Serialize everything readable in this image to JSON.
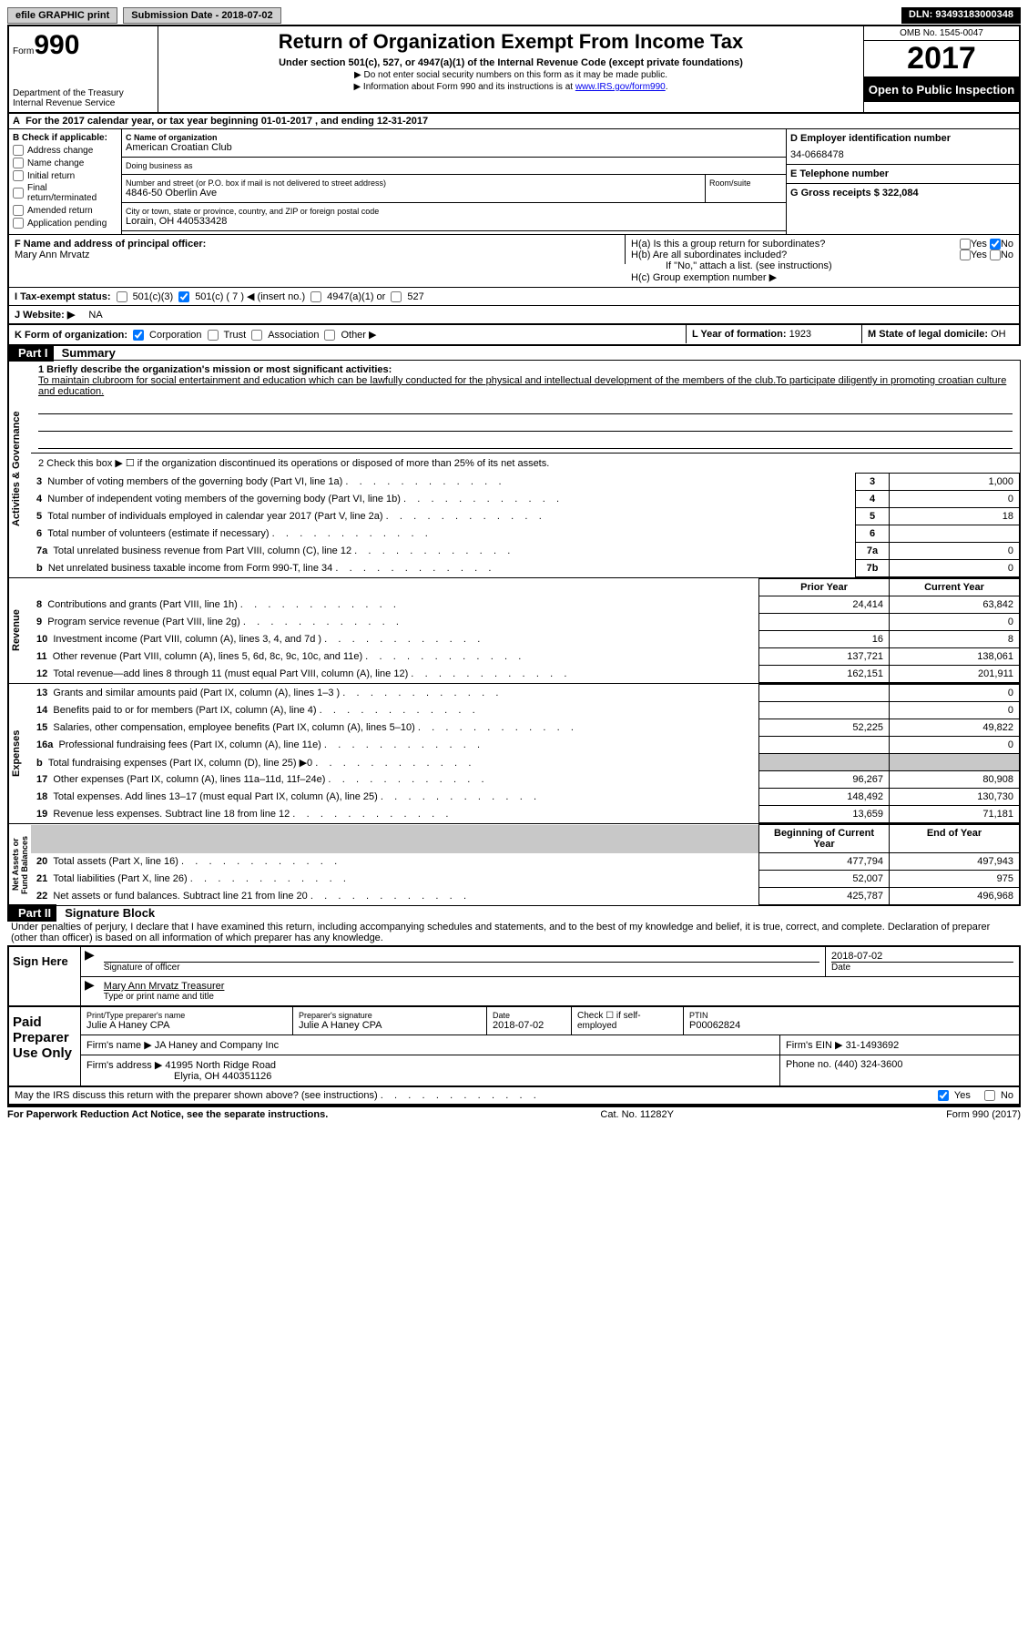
{
  "top": {
    "efile": "efile GRAPHIC print",
    "submission": "Submission Date - 2018-07-02",
    "dln": "DLN: 93493183000348"
  },
  "header": {
    "form_word": "Form",
    "form_num": "990",
    "dept1": "Department of the Treasury",
    "dept2": "Internal Revenue Service",
    "title": "Return of Organization Exempt From Income Tax",
    "subtitle": "Under section 501(c), 527, or 4947(a)(1) of the Internal Revenue Code (except private foundations)",
    "note1": "▶ Do not enter social security numbers on this form as it may be made public.",
    "note2_pre": "▶ Information about Form 990 and its instructions is at ",
    "note2_link": "www.IRS.gov/form990",
    "omb": "OMB No. 1545-0047",
    "year": "2017",
    "open": "Open to Public Inspection"
  },
  "a_line": {
    "prefix": "For the 2017 calendar year, or tax year beginning ",
    "begin": "01-01-2017",
    "mid": "  , and ending ",
    "end": "12-31-2017"
  },
  "b": {
    "heading": "B Check if applicable:",
    "items": [
      "Address change",
      "Name change",
      "Initial return",
      "Final return/terminated",
      "Amended return",
      "Application pending"
    ]
  },
  "c": {
    "name_label": "C Name of organization",
    "name": "American Croatian Club",
    "dba_label": "Doing business as",
    "dba": "",
    "street_label": "Number and street (or P.O. box if mail is not delivered to street address)",
    "room_label": "Room/suite",
    "street": "4846-50 Oberlin Ave",
    "city_label": "City or town, state or province, country, and ZIP or foreign postal code",
    "city": "Lorain, OH  440533428"
  },
  "d": {
    "label": "D Employer identification number",
    "value": "34-0668478"
  },
  "e": {
    "label": "E Telephone number",
    "value": ""
  },
  "g": {
    "label": "G Gross receipts $",
    "value": "322,084"
  },
  "f": {
    "label": "F  Name and address of principal officer:",
    "name": "Mary Ann Mrvatz"
  },
  "h": {
    "a": "H(a)  Is this a group return for subordinates?",
    "b": "H(b)  Are all subordinates included?",
    "b_note": "If \"No,\" attach a list. (see instructions)",
    "c": "H(c)  Group exemption number ▶",
    "yes": "Yes",
    "no": "No"
  },
  "i": {
    "label": "I  Tax-exempt status:",
    "opts": [
      "501(c)(3)",
      "501(c) ( 7 ) ◀ (insert no.)",
      "4947(a)(1) or",
      "527"
    ]
  },
  "j": {
    "label": "J  Website: ▶",
    "value": "NA"
  },
  "k": {
    "label": "K Form of organization:",
    "opts": [
      "Corporation",
      "Trust",
      "Association",
      "Other ▶"
    ]
  },
  "l": {
    "label": "L Year of formation:",
    "value": "1923"
  },
  "m": {
    "label": "M State of legal domicile:",
    "value": "OH"
  },
  "part1": {
    "header": "Part I",
    "title": "Summary",
    "mission_label": "1   Briefly describe the organization's mission or most significant activities:",
    "mission": "To maintain clubroom for social entertainment and education which can be lawfully conducted for the physical and intellectual development of the members of the club.To participate diligently in promoting croatian culture and education.",
    "line2": "2   Check this box ▶ ☐  if the organization discontinued its operations or disposed of more than 25% of its net assets.",
    "governance_rows": [
      {
        "n": "3",
        "t": "Number of voting members of the governing body (Part VI, line 1a)",
        "box": "3",
        "v": "1,000"
      },
      {
        "n": "4",
        "t": "Number of independent voting members of the governing body (Part VI, line 1b)",
        "box": "4",
        "v": "0"
      },
      {
        "n": "5",
        "t": "Total number of individuals employed in calendar year 2017 (Part V, line 2a)",
        "box": "5",
        "v": "18"
      },
      {
        "n": "6",
        "t": "Total number of volunteers (estimate if necessary)",
        "box": "6",
        "v": ""
      },
      {
        "n": "7a",
        "t": "Total unrelated business revenue from Part VIII, column (C), line 12",
        "box": "7a",
        "v": "0"
      },
      {
        "n": "b",
        "t": "Net unrelated business taxable income from Form 990-T, line 34",
        "box": "7b",
        "v": "0"
      }
    ],
    "col_headers": {
      "py": "Prior Year",
      "cy": "Current Year"
    },
    "revenue_rows": [
      {
        "n": "8",
        "t": "Contributions and grants (Part VIII, line 1h)",
        "py": "24,414",
        "cy": "63,842"
      },
      {
        "n": "9",
        "t": "Program service revenue (Part VIII, line 2g)",
        "py": "",
        "cy": "0"
      },
      {
        "n": "10",
        "t": "Investment income (Part VIII, column (A), lines 3, 4, and 7d )",
        "py": "16",
        "cy": "8"
      },
      {
        "n": "11",
        "t": "Other revenue (Part VIII, column (A), lines 5, 6d, 8c, 9c, 10c, and 11e)",
        "py": "137,721",
        "cy": "138,061"
      },
      {
        "n": "12",
        "t": "Total revenue—add lines 8 through 11 (must equal Part VIII, column (A), line 12)",
        "py": "162,151",
        "cy": "201,911"
      }
    ],
    "expense_rows": [
      {
        "n": "13",
        "t": "Grants and similar amounts paid (Part IX, column (A), lines 1–3 )",
        "py": "",
        "cy": "0"
      },
      {
        "n": "14",
        "t": "Benefits paid to or for members (Part IX, column (A), line 4)",
        "py": "",
        "cy": "0"
      },
      {
        "n": "15",
        "t": "Salaries, other compensation, employee benefits (Part IX, column (A), lines 5–10)",
        "py": "52,225",
        "cy": "49,822"
      },
      {
        "n": "16a",
        "t": "Professional fundraising fees (Part IX, column (A), line 11e)",
        "py": "",
        "cy": "0"
      },
      {
        "n": "b",
        "t": "Total fundraising expenses (Part IX, column (D), line 25) ▶0",
        "py": "grey",
        "cy": "grey"
      },
      {
        "n": "17",
        "t": "Other expenses (Part IX, column (A), lines 11a–11d, 11f–24e)",
        "py": "96,267",
        "cy": "80,908"
      },
      {
        "n": "18",
        "t": "Total expenses. Add lines 13–17 (must equal Part IX, column (A), line 25)",
        "py": "148,492",
        "cy": "130,730"
      },
      {
        "n": "19",
        "t": "Revenue less expenses. Subtract line 18 from line 12",
        "py": "13,659",
        "cy": "71,181"
      }
    ],
    "net_headers": {
      "by": "Beginning of Current Year",
      "ey": "End of Year"
    },
    "net_rows": [
      {
        "n": "20",
        "t": "Total assets (Part X, line 16)",
        "py": "477,794",
        "cy": "497,943"
      },
      {
        "n": "21",
        "t": "Total liabilities (Part X, line 26)",
        "py": "52,007",
        "cy": "975"
      },
      {
        "n": "22",
        "t": "Net assets or fund balances. Subtract line 21 from line 20",
        "py": "425,787",
        "cy": "496,968"
      }
    ]
  },
  "part2": {
    "header": "Part II",
    "title": "Signature Block",
    "penalty": "Under penalties of perjury, I declare that I have examined this return, including accompanying schedules and statements, and to the best of my knowledge and belief, it is true, correct, and complete. Declaration of preparer (other than officer) is based on all information of which preparer has any knowledge.",
    "sign_here": "Sign Here",
    "sig_officer": "Signature of officer",
    "date_label": "Date",
    "date": "2018-07-02",
    "officer_name": "Mary Ann Mrvatz  Treasurer",
    "type_name": "Type or print name and title",
    "paid_label": "Paid Preparer Use Only",
    "prep_name_label": "Print/Type preparer's name",
    "prep_name": "Julie A Haney CPA",
    "prep_sig_label": "Preparer's signature",
    "prep_sig": "Julie A Haney CPA",
    "prep_date_label": "Date",
    "prep_date": "2018-07-02",
    "check_self": "Check ☐ if self-employed",
    "ptin_label": "PTIN",
    "ptin": "P00062824",
    "firm_name_label": "Firm's name      ▶",
    "firm_name": "JA Haney and Company Inc",
    "firm_ein_label": "Firm's EIN ▶",
    "firm_ein": "31-1493692",
    "firm_addr_label": "Firm's address ▶",
    "firm_addr": "41995 North Ridge Road",
    "firm_city": "Elyria, OH  440351126",
    "phone_label": "Phone no.",
    "phone": "(440) 324-3600",
    "discuss": "May the IRS discuss this return with the preparer shown above? (see instructions)",
    "yes": "Yes",
    "no": "No"
  },
  "footer": {
    "left": "For Paperwork Reduction Act Notice, see the separate instructions.",
    "mid": "Cat. No. 11282Y",
    "right": "Form 990 (2017)"
  }
}
